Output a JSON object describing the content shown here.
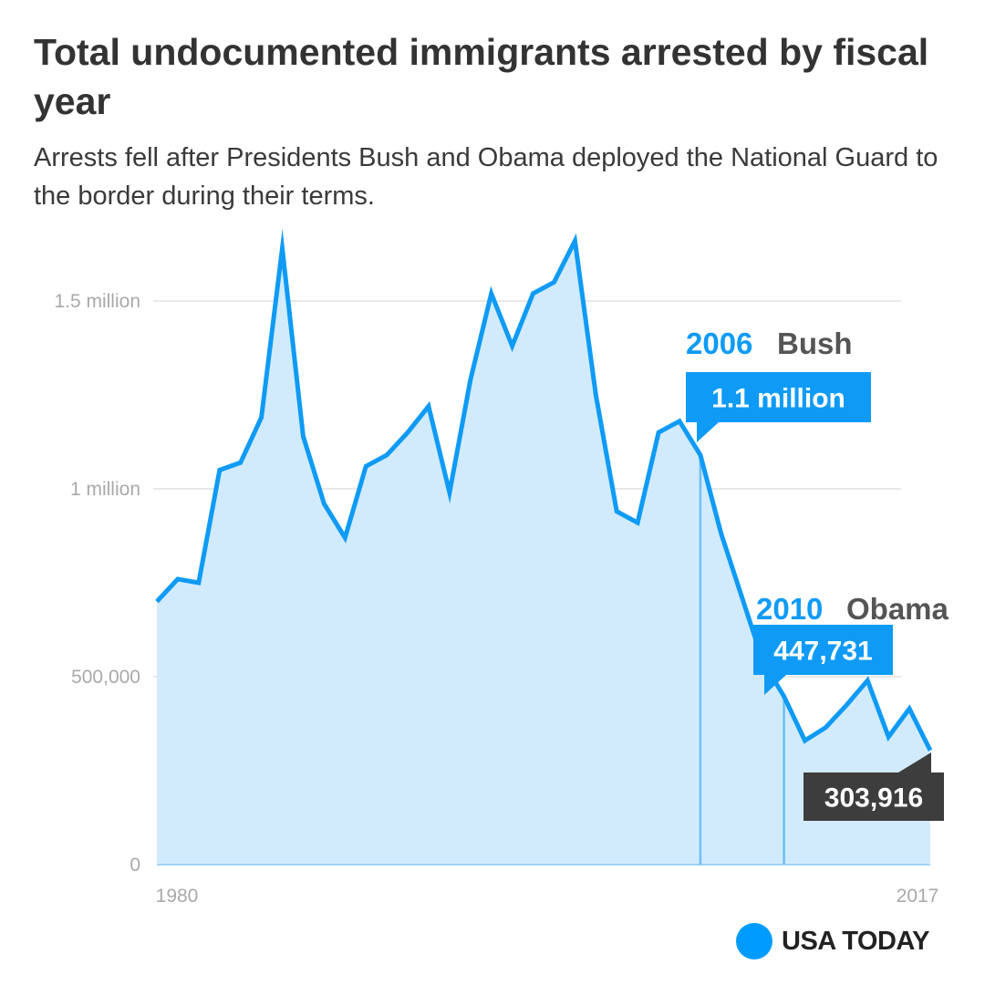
{
  "title": "Total undocumented immigrants arrested by fiscal year",
  "subtitle": "Arrests fell after Presidents Bush and Obama deployed the National Guard to the border during their terms.",
  "brand": {
    "name": "USA TODAY",
    "color": "#009bff"
  },
  "colors": {
    "line": "#0f9bf5",
    "area": "#d2ebfc",
    "grid": "#d9d9d9",
    "ticks": "#a9a9a9",
    "callout": "#0f9bf5",
    "latest_callout": "#3d3d3d"
  },
  "chart_data": {
    "type": "area",
    "xlabel": "",
    "ylabel": "",
    "xlim": [
      1980,
      2017
    ],
    "ylim": [
      0,
      1700000
    ],
    "y_ticks": [
      {
        "value": 0,
        "label": "0"
      },
      {
        "value": 500000,
        "label": "500,000"
      },
      {
        "value": 1000000,
        "label": "1 million"
      },
      {
        "value": 1500000,
        "label": "1.5 million"
      }
    ],
    "x_ticks": [
      {
        "value": 1980,
        "label": "1980"
      },
      {
        "value": 2017,
        "label": "2017"
      }
    ],
    "grid": true,
    "legend": "none",
    "series": [
      {
        "x": [
          1980,
          1981,
          1982,
          1983,
          1984,
          1985,
          1986,
          1987,
          1988,
          1989,
          1990,
          1991,
          1992,
          1993,
          1994,
          1995,
          1996,
          1997,
          1998,
          1999,
          2000,
          2001,
          2002,
          2003,
          2004,
          2005,
          2006,
          2007,
          2008,
          2009,
          2010,
          2011,
          2012,
          2013,
          2014,
          2015,
          2016,
          2017
        ],
        "values": [
          700000,
          760000,
          750000,
          1050000,
          1070000,
          1190000,
          1640000,
          1140000,
          960000,
          870000,
          1060000,
          1090000,
          1150000,
          1220000,
          990000,
          1290000,
          1520000,
          1380000,
          1520000,
          1550000,
          1660000,
          1250000,
          940000,
          910000,
          1150000,
          1180000,
          1090000,
          880000,
          710000,
          540000,
          447731,
          330000,
          365000,
          425000,
          490000,
          340000,
          415000,
          303916
        ]
      }
    ],
    "annotations": [
      {
        "year": 2006,
        "year_label": "2006",
        "president": "Bush",
        "value": 1090000,
        "value_label": "1.1 million"
      },
      {
        "year": 2010,
        "year_label": "2010",
        "president": "Obama",
        "value": 447731,
        "value_label": "447,731"
      },
      {
        "year": 2017,
        "value": 303916,
        "value_label": "303,916"
      }
    ]
  }
}
